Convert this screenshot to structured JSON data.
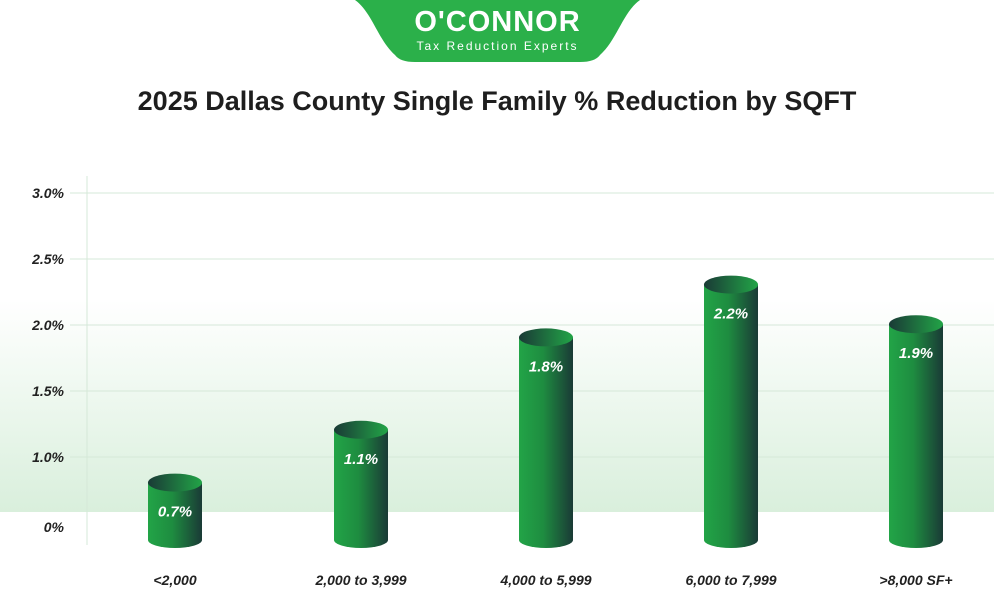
{
  "logo": {
    "name": "O'CONNOR",
    "tagline": "Tax Reduction Experts",
    "color": "#2bb04a"
  },
  "chart_data": {
    "type": "bar",
    "title": "2025 Dallas County Single Family % Reduction by SQFT",
    "categories": [
      "<2,000",
      "2,000 to 3,999",
      "4,000 to 5,999",
      "6,000 to 7,999",
      ">8,000 SF+"
    ],
    "values": [
      0.7,
      1.1,
      1.8,
      2.2,
      1.9
    ],
    "data_labels": [
      "0.7%",
      "1.1%",
      "1.8%",
      "2.2%",
      "1.9%"
    ],
    "yticks": [
      0,
      1.0,
      1.5,
      2.0,
      2.5,
      3.0
    ],
    "ytick_labels": [
      "0%",
      "1.0%",
      "1.5%",
      "2.0%",
      "2.5%",
      "3.0%"
    ],
    "ylim": [
      0,
      3.0
    ],
    "grid": true,
    "bar_color": "#22a447",
    "bar_shade": "#1a3a36"
  }
}
